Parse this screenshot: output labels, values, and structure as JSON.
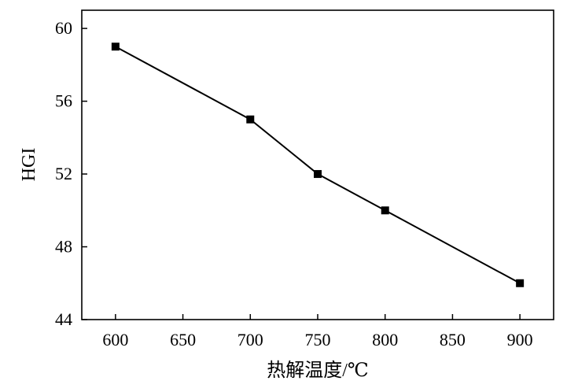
{
  "chart_data": {
    "type": "line",
    "title": "",
    "xlabel": "热解温度/℃",
    "ylabel": "HGI",
    "xlim": [
      575,
      925
    ],
    "ylim": [
      44,
      61
    ],
    "x_ticks": [
      600,
      650,
      700,
      750,
      800,
      850,
      900
    ],
    "y_ticks": [
      44,
      48,
      52,
      56,
      60
    ],
    "grid": false,
    "legend": "none",
    "series": [
      {
        "x": [
          600,
          700,
          750,
          800,
          900
        ],
        "y": [
          59,
          55,
          52,
          50,
          46
        ],
        "marker": "square",
        "color": "#000000"
      }
    ]
  }
}
